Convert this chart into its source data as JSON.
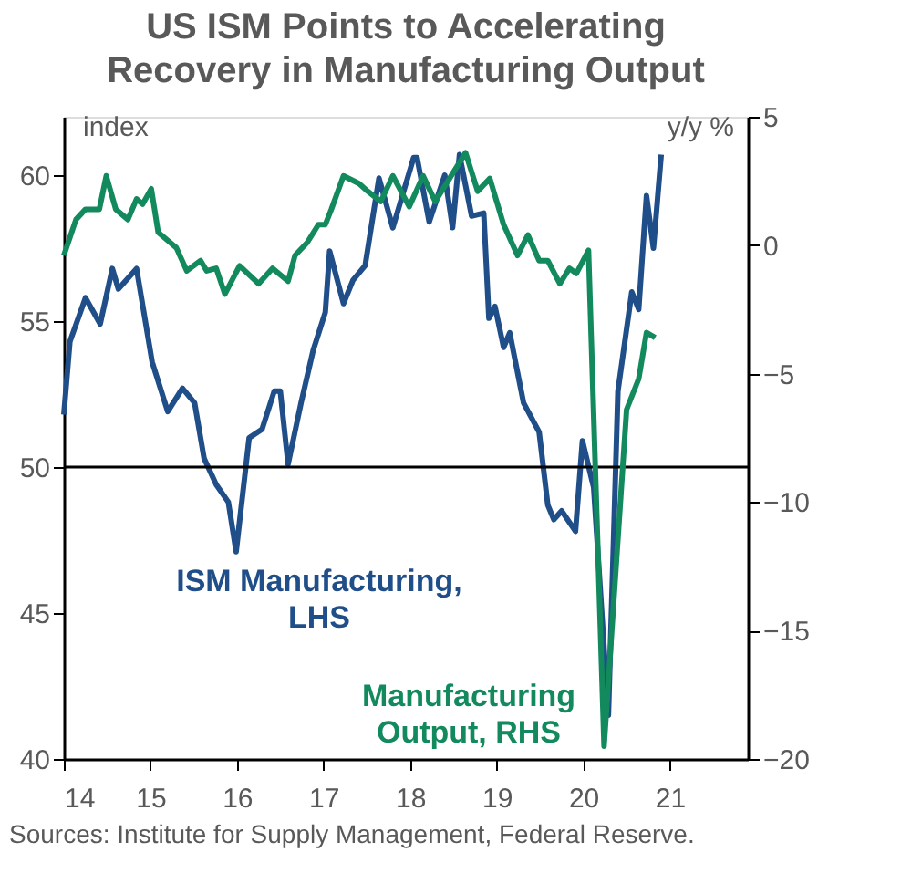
{
  "chart_data": {
    "type": "line",
    "title": "US ISM Points to Accelerating\nRecovery in Manufacturing Output",
    "ylabel": "index",
    "y2label": "y/y %",
    "xlim": [
      14,
      21.9
    ],
    "xticks": [
      14,
      15,
      16,
      17,
      18,
      19,
      20,
      21
    ],
    "ylim": [
      40,
      62
    ],
    "yticks": [
      40,
      45,
      50,
      55,
      60
    ],
    "y2lim": [
      -20,
      5
    ],
    "y2ticks": [
      -20,
      -15,
      -10,
      -5,
      0,
      5
    ],
    "grid": false,
    "marker": "none",
    "line_style": "solid",
    "ref_lines": [
      {
        "axis": "y",
        "value": 50,
        "color": "#000000"
      }
    ],
    "annotations": [
      "Sources: Institute for Supply Management, Federal Reserve."
    ],
    "series": [
      {
        "name": "ISM Manufacturing,\nLHS",
        "color": "#1f4e89",
        "x": [
          14.0,
          14.07,
          14.25,
          14.42,
          14.56,
          14.63,
          14.84,
          15.02,
          15.2,
          15.37,
          15.51,
          15.62,
          15.76,
          15.9,
          15.99,
          16.14,
          16.29,
          16.43,
          16.5,
          16.59,
          16.74,
          16.88,
          17.02,
          17.07,
          17.23,
          17.34,
          17.48,
          17.64,
          17.8,
          18.04,
          18.08,
          18.22,
          18.4,
          18.49,
          18.57,
          18.71,
          18.85,
          18.91,
          18.98,
          19.08,
          19.15,
          19.31,
          19.49,
          19.59,
          19.66,
          19.75,
          19.91,
          19.99,
          20.12,
          20.29,
          20.4,
          20.56,
          20.64,
          20.73,
          20.81,
          20.9
        ],
        "values": [
          51.8,
          54.3,
          55.8,
          54.9,
          56.8,
          56.1,
          56.8,
          53.6,
          51.9,
          52.7,
          52.2,
          50.3,
          49.4,
          48.8,
          47.1,
          51.0,
          51.3,
          52.6,
          52.6,
          50.1,
          52.2,
          54.0,
          55.3,
          57.4,
          55.6,
          56.4,
          56.9,
          59.9,
          58.2,
          60.6,
          60.6,
          58.4,
          60.0,
          58.2,
          60.7,
          58.6,
          58.7,
          55.1,
          55.5,
          54.1,
          54.6,
          52.2,
          51.2,
          48.7,
          48.2,
          48.5,
          47.8,
          50.9,
          49.3,
          41.5,
          52.6,
          56.0,
          55.4,
          59.3,
          57.5,
          60.7
        ]
      },
      {
        "name": "Manufacturing\nOutput, RHS",
        "color": "#138a5e",
        "axis": "y2",
        "x": [
          14.0,
          14.14,
          14.25,
          14.41,
          14.49,
          14.6,
          14.74,
          14.84,
          14.91,
          15.01,
          15.09,
          15.23,
          15.3,
          15.42,
          15.58,
          15.65,
          15.76,
          15.86,
          16.03,
          16.25,
          16.41,
          16.59,
          16.67,
          16.81,
          16.94,
          17.02,
          17.09,
          17.23,
          17.41,
          17.51,
          17.66,
          17.8,
          17.99,
          18.15,
          18.29,
          18.64,
          18.78,
          18.92,
          19.08,
          19.24,
          19.36,
          19.49,
          19.59,
          19.73,
          19.84,
          19.92,
          20.06,
          20.24,
          20.5,
          20.64,
          20.73,
          20.83
        ],
        "values": [
          -0.4,
          1.0,
          1.4,
          1.4,
          2.7,
          1.4,
          1.0,
          1.8,
          1.6,
          2.2,
          0.5,
          0.1,
          -0.1,
          -1.0,
          -0.6,
          -1.0,
          -0.9,
          -1.9,
          -0.8,
          -1.5,
          -0.9,
          -1.4,
          -0.4,
          0.1,
          0.8,
          0.8,
          1.4,
          2.7,
          2.4,
          2.1,
          1.7,
          2.7,
          1.5,
          2.7,
          1.7,
          3.6,
          2.1,
          2.6,
          0.8,
          -0.4,
          0.4,
          -0.6,
          -0.6,
          -1.5,
          -0.9,
          -1.1,
          -0.2,
          -19.5,
          -6.4,
          -5.2,
          -3.4,
          -3.6
        ]
      }
    ]
  }
}
